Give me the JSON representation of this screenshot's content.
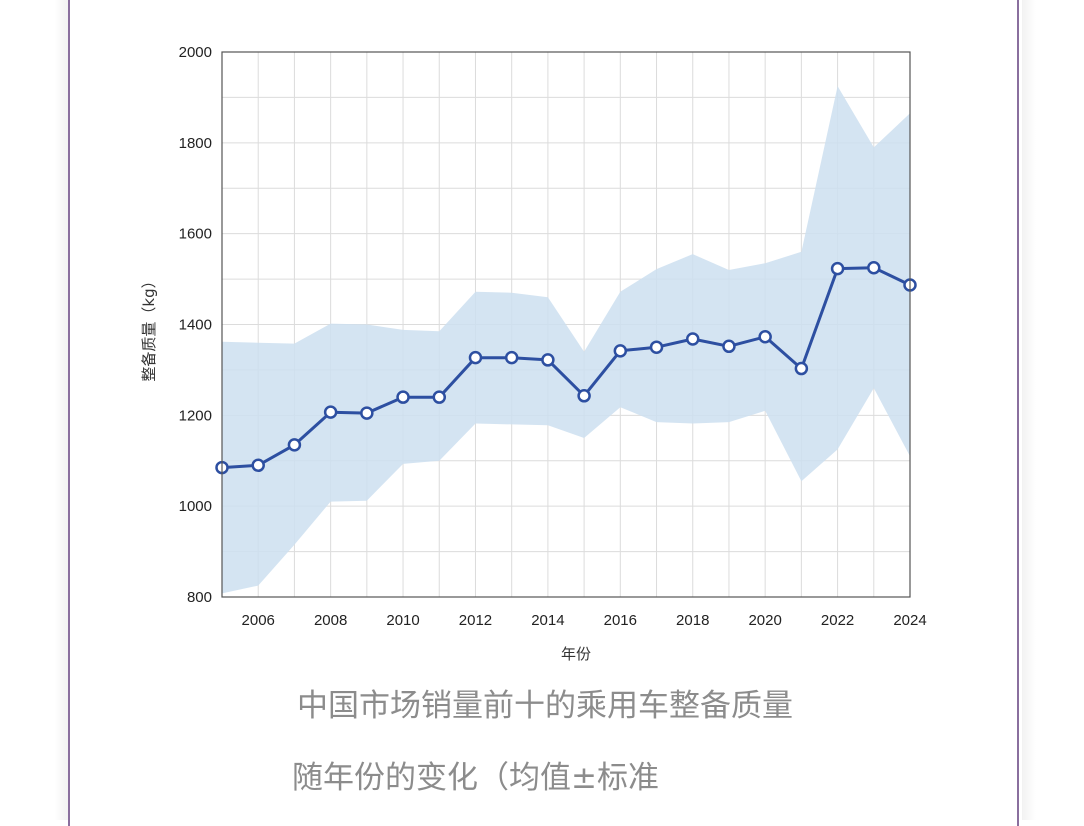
{
  "chart_data": {
    "type": "line",
    "title": "",
    "xlabel": "年份",
    "ylabel": "整备质量（kg）",
    "xlim": [
      2005,
      2024
    ],
    "ylim": [
      800,
      2000
    ],
    "x_ticks": [
      2006,
      2008,
      2010,
      2012,
      2014,
      2016,
      2018,
      2020,
      2022,
      2024
    ],
    "y_ticks": [
      800,
      1000,
      1200,
      1400,
      1600,
      1800,
      2000
    ],
    "grid": true,
    "legend": "none",
    "x": [
      2005,
      2006,
      2007,
      2008,
      2009,
      2010,
      2011,
      2012,
      2013,
      2014,
      2015,
      2016,
      2017,
      2018,
      2019,
      2020,
      2021,
      2022,
      2023,
      2024
    ],
    "series": [
      {
        "values": [
          1085,
          1090,
          1135,
          1207,
          1205,
          1240,
          1240,
          1327,
          1327,
          1322,
          1243,
          1342,
          1350,
          1368,
          1352,
          1373,
          1303,
          1523,
          1525,
          1487
        ],
        "upper": [
          1362,
          1360,
          1358,
          1402,
          1400,
          1388,
          1385,
          1472,
          1470,
          1460,
          1340,
          1472,
          1522,
          1555,
          1520,
          1535,
          1560,
          1925,
          1790,
          1865
        ],
        "lower": [
          808,
          825,
          915,
          1010,
          1012,
          1093,
          1100,
          1182,
          1180,
          1178,
          1150,
          1218,
          1185,
          1182,
          1185,
          1210,
          1055,
          1125,
          1260,
          1110
        ]
      }
    ],
    "colors": {
      "line": "#2d4fa1",
      "band": "#cddff0",
      "marker_fill": "#ffffff",
      "grid": "#dcdcdc"
    }
  },
  "caption": {
    "line1": "中国市场销量前十的乘用车整备质量",
    "line2": "随年份的变化（均值±标准"
  }
}
